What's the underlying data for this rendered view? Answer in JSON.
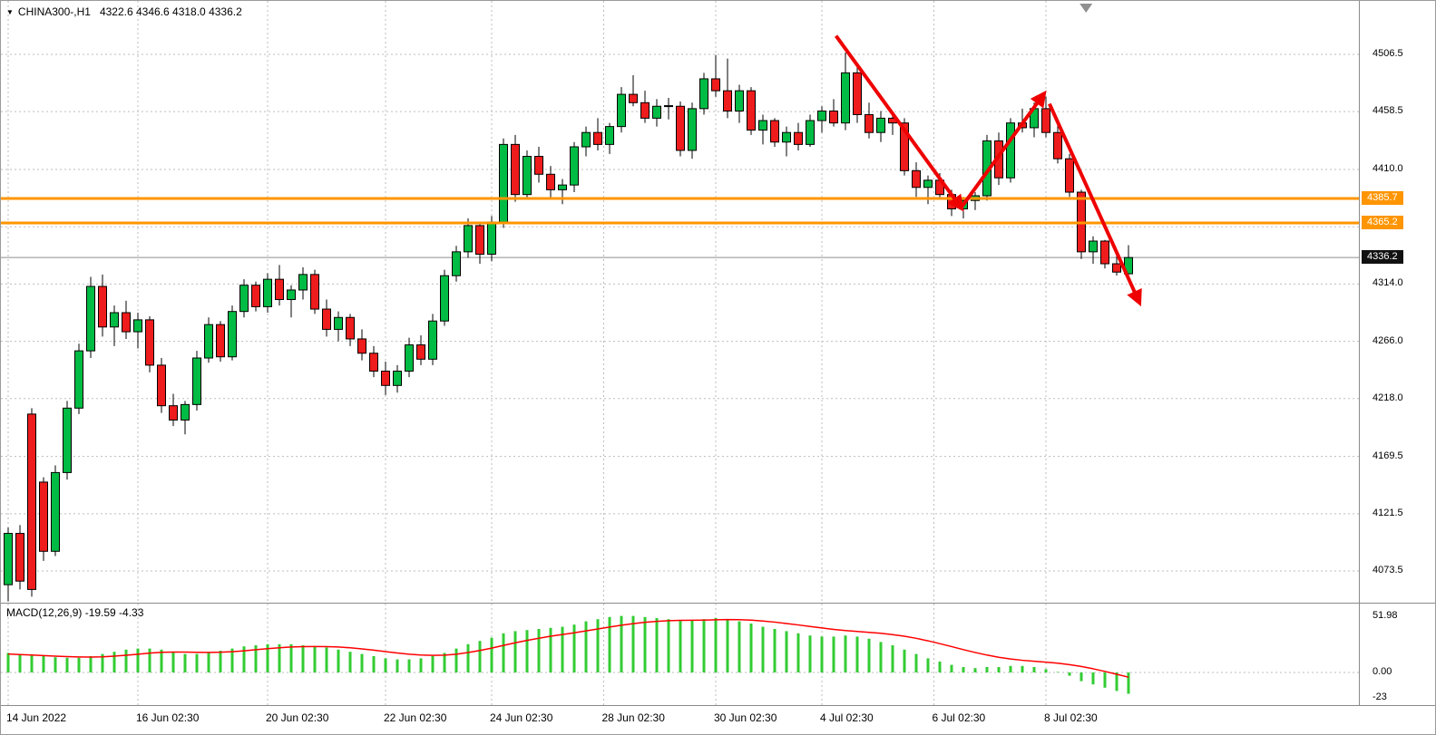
{
  "icons": {
    "symbol_marker": "▼"
  },
  "colors": {
    "bull": "#00bb44",
    "bear": "#ee1c1c",
    "hline": "#ff9500",
    "annotation": "#ee0000",
    "macd_hist": "#33cc33",
    "macd_signal": "#ff0000",
    "current_tag_bg": "#111111",
    "grid": "#bdbdbd"
  },
  "chart_data": {
    "type": "candlestick",
    "title": "CHINA300-,H1",
    "ohlc_readout": "4322.6 4346.6 4318.0 4336.2",
    "ohlc": {
      "open": 4322.6,
      "high": 4346.6,
      "low": 4318.0,
      "close": 4336.2
    },
    "ylim": [
      4048.5,
      4551.3
    ],
    "grid": true,
    "price_axis": {
      "ticks": [
        {
          "price": 4506.5,
          "label": "4506.5"
        },
        {
          "price": 4458.5,
          "label": "4458.5"
        },
        {
          "price": 4410.0,
          "label": "4410.0"
        },
        {
          "price": 4314.0,
          "label": "4314.0"
        },
        {
          "price": 4266.0,
          "label": "4266.0"
        },
        {
          "price": 4218.0,
          "label": "4218.0"
        },
        {
          "price": 4169.5,
          "label": "4169.5"
        },
        {
          "price": 4121.5,
          "label": "4121.5"
        },
        {
          "price": 4073.5,
          "label": "4073.5"
        }
      ],
      "grid_prices": [
        4506.5,
        4458.5,
        4410.0,
        4362.0,
        4314.0,
        4266.0,
        4218.0,
        4169.5,
        4121.5,
        4073.5
      ]
    },
    "time_axis": [
      {
        "index": 0,
        "label": "14 Jun 2022"
      },
      {
        "index": 11,
        "label": "16 Jun 02:30"
      },
      {
        "index": 22,
        "label": "20 Jun 02:30"
      },
      {
        "index": 32,
        "label": "22 Jun 02:30"
      },
      {
        "index": 41,
        "label": "24 Jun 02:30"
      },
      {
        "index": 50.5,
        "label": "28 Jun 02:30"
      },
      {
        "index": 60,
        "label": "30 Jun 02:30"
      },
      {
        "index": 69,
        "label": "4 Jul 02:30"
      },
      {
        "index": 78.5,
        "label": "6 Jul 02:30"
      },
      {
        "index": 88,
        "label": "8 Jul 02:30"
      }
    ],
    "hlines": [
      {
        "price": 4385.7,
        "label": "4385.7"
      },
      {
        "price": 4365.2,
        "label": "4365.2"
      }
    ],
    "current_price": {
      "price": 4336.2,
      "label": "4336.2"
    },
    "arrows": [
      {
        "from_index": 70.2,
        "from_price": 4522,
        "to_index": 80.8,
        "to_price": 4378
      },
      {
        "from_index": 80.8,
        "from_price": 4378,
        "to_index": 87.8,
        "to_price": 4473
      },
      {
        "from_index": 88.3,
        "from_price": 4465,
        "to_index": 95.9,
        "to_price": 4299
      }
    ],
    "shift_marker": {
      "x_index": 91.4
    },
    "candles": [
      [
        4062,
        4110,
        4048,
        4105
      ],
      [
        4105,
        4112,
        4058,
        4065
      ],
      [
        4205,
        4210,
        4052,
        4058
      ],
      [
        4148,
        4152,
        4082,
        4090
      ],
      [
        4090,
        4162,
        4086,
        4156
      ],
      [
        4156,
        4216,
        4150,
        4210
      ],
      [
        4210,
        4264,
        4205,
        4258
      ],
      [
        4258,
        4320,
        4252,
        4312
      ],
      [
        4312,
        4322,
        4270,
        4278
      ],
      [
        4278,
        4296,
        4262,
        4290
      ],
      [
        4290,
        4300,
        4268,
        4274
      ],
      [
        4274,
        4290,
        4260,
        4284
      ],
      [
        4284,
        4287,
        4240,
        4246
      ],
      [
        4246,
        4252,
        4206,
        4212
      ],
      [
        4212,
        4222,
        4195,
        4200
      ],
      [
        4200,
        4216,
        4188,
        4213
      ],
      [
        4213,
        4258,
        4208,
        4252
      ],
      [
        4252,
        4286,
        4248,
        4280
      ],
      [
        4280,
        4283,
        4249,
        4253
      ],
      [
        4253,
        4296,
        4250,
        4291
      ],
      [
        4291,
        4318,
        4286,
        4313
      ],
      [
        4313,
        4316,
        4291,
        4295
      ],
      [
        4295,
        4323,
        4290,
        4318
      ],
      [
        4318,
        4330,
        4296,
        4301
      ],
      [
        4301,
        4313,
        4286,
        4309
      ],
      [
        4309,
        4328,
        4301,
        4322
      ],
      [
        4322,
        4326,
        4289,
        4293
      ],
      [
        4293,
        4301,
        4270,
        4276
      ],
      [
        4276,
        4291,
        4266,
        4286
      ],
      [
        4286,
        4289,
        4262,
        4268
      ],
      [
        4268,
        4276,
        4250,
        4256
      ],
      [
        4256,
        4262,
        4236,
        4241
      ],
      [
        4241,
        4249,
        4221,
        4229
      ],
      [
        4229,
        4246,
        4223,
        4241
      ],
      [
        4241,
        4269,
        4236,
        4263
      ],
      [
        4263,
        4271,
        4246,
        4251
      ],
      [
        4251,
        4289,
        4246,
        4283
      ],
      [
        4283,
        4326,
        4279,
        4321
      ],
      [
        4321,
        4346,
        4316,
        4341
      ],
      [
        4341,
        4369,
        4336,
        4363
      ],
      [
        4363,
        4366,
        4331,
        4339
      ],
      [
        4339,
        4371,
        4333,
        4366
      ],
      [
        4366,
        4436,
        4361,
        4431
      ],
      [
        4431,
        4439,
        4383,
        4389
      ],
      [
        4389,
        4426,
        4386,
        4421
      ],
      [
        4421,
        4429,
        4399,
        4406
      ],
      [
        4406,
        4413,
        4385,
        4393
      ],
      [
        4393,
        4402,
        4381,
        4397
      ],
      [
        4397,
        4433,
        4391,
        4429
      ],
      [
        4429,
        4446,
        4421,
        4441
      ],
      [
        4441,
        4453,
        4426,
        4431
      ],
      [
        4431,
        4449,
        4423,
        4446
      ],
      [
        4446,
        4479,
        4441,
        4473
      ],
      [
        4473,
        4489,
        4463,
        4466
      ],
      [
        4466,
        4476,
        4449,
        4453
      ],
      [
        4453,
        4469,
        4446,
        4463
      ],
      [
        4463,
        4470,
        4452,
        4463.5
      ],
      [
        4463,
        4467,
        4421,
        4426
      ],
      [
        4426,
        4466,
        4419,
        4461
      ],
      [
        4461,
        4491,
        4456,
        4486
      ],
      [
        4486,
        4506,
        4471,
        4476
      ],
      [
        4476,
        4503,
        4453,
        4459
      ],
      [
        4459,
        4481,
        4449,
        4476
      ],
      [
        4476,
        4479,
        4439,
        4443
      ],
      [
        4443,
        4456,
        4431,
        4451
      ],
      [
        4451,
        4453,
        4429,
        4433
      ],
      [
        4433,
        4446,
        4421,
        4441
      ],
      [
        4441,
        4449,
        4426,
        4431
      ],
      [
        4431,
        4456,
        4429,
        4451
      ],
      [
        4451,
        4463,
        4441,
        4459
      ],
      [
        4459,
        4469,
        4446,
        4449
      ],
      [
        4449,
        4508,
        4443,
        4491
      ],
      [
        4491,
        4496,
        4449,
        4456
      ],
      [
        4456,
        4466,
        4436,
        4441
      ],
      [
        4441,
        4459,
        4433,
        4453
      ],
      [
        4453,
        4457,
        4439,
        4449
      ],
      [
        4449,
        4453,
        4405,
        4409
      ],
      [
        4409,
        4416,
        4387,
        4395
      ],
      [
        4395,
        4405,
        4381,
        4401
      ],
      [
        4401,
        4407,
        4385,
        4389
      ],
      [
        4389,
        4393,
        4371,
        4377
      ],
      [
        4377,
        4387,
        4369,
        4384
      ],
      [
        4384,
        4391,
        4376,
        4388
      ],
      [
        4388,
        4439,
        4384,
        4434
      ],
      [
        4434,
        4441,
        4397,
        4403
      ],
      [
        4403,
        4453,
        4399,
        4449
      ],
      [
        4449,
        4461,
        4441,
        4445
      ],
      [
        4445,
        4466,
        4437,
        4461
      ],
      [
        4461,
        4471,
        4437,
        4441
      ],
      [
        4441,
        4447,
        4415,
        4419
      ],
      [
        4419,
        4423,
        4387,
        4391
      ],
      [
        4391,
        4393,
        4335,
        4341
      ],
      [
        4341,
        4354,
        4331,
        4350
      ],
      [
        4350,
        4351,
        4327,
        4331
      ],
      [
        4331,
        4339,
        4321,
        4324
      ],
      [
        4322.6,
        4346.6,
        4318.0,
        4336.2
      ]
    ],
    "macd": {
      "label": "MACD(12,26,9) -19.59 -4.33",
      "axis_labels": [
        {
          "value": 51.98,
          "label": "51.98"
        },
        {
          "value": 0,
          "label": "0.00"
        },
        {
          "value": -23,
          "label": "-23"
        }
      ],
      "level_lines": [
        0
      ],
      "ylim": [
        -28,
        62
      ],
      "histogram": [
        18,
        17,
        16,
        15,
        14,
        13.5,
        13.5,
        15,
        17,
        19,
        21,
        22,
        22,
        21,
        19,
        17,
        17,
        18,
        20,
        22,
        24,
        25,
        26,
        26,
        26,
        25,
        24,
        23,
        21,
        19,
        17,
        15,
        13,
        12,
        12,
        13,
        15,
        18,
        22,
        26,
        29,
        32,
        36,
        38,
        39,
        40,
        41,
        42,
        44,
        47,
        49,
        51,
        51.98,
        52,
        51,
        50,
        49,
        48,
        48,
        49,
        50,
        49,
        47,
        45,
        42,
        40,
        38,
        36,
        34,
        33,
        33,
        34,
        33,
        31,
        28,
        25,
        21,
        17,
        13,
        10,
        7,
        5,
        4,
        5,
        5,
        6,
        6,
        5,
        3,
        0.5,
        -3,
        -8,
        -11,
        -14,
        -17,
        -19.59
      ],
      "signal": [
        17,
        16.5,
        16,
        15.5,
        15,
        14.6,
        14.3,
        14.2,
        14.4,
        15,
        15.8,
        16.8,
        17.8,
        18.5,
        18.8,
        18.7,
        18.5,
        18.4,
        18.6,
        19.1,
        19.9,
        20.9,
        21.9,
        22.7,
        23.4,
        23.8,
        23.9,
        23.8,
        23.4,
        22.7,
        21.7,
        20.5,
        19.2,
        17.9,
        16.8,
        16,
        15.7,
        15.9,
        16.8,
        18.3,
        20.2,
        22.4,
        24.9,
        27.3,
        29.5,
        31.5,
        33.3,
        34.9,
        36.5,
        38.2,
        40,
        41.8,
        43.4,
        44.9,
        46.1,
        47,
        47.6,
        47.9,
        48,
        48.1,
        48.4,
        48.6,
        48.5,
        48.1,
        47.3,
        46.3,
        45,
        43.7,
        42.3,
        40.9,
        39.6,
        38.5,
        37.7,
        36.9,
        36,
        34.8,
        33.3,
        31.4,
        29.1,
        26.5,
        23.8,
        21,
        18.4,
        16,
        14,
        12.4,
        11.2,
        10.3,
        9.5,
        8.5,
        7.2,
        5.5,
        3.4,
        1,
        -1.7,
        -4.33
      ]
    }
  }
}
